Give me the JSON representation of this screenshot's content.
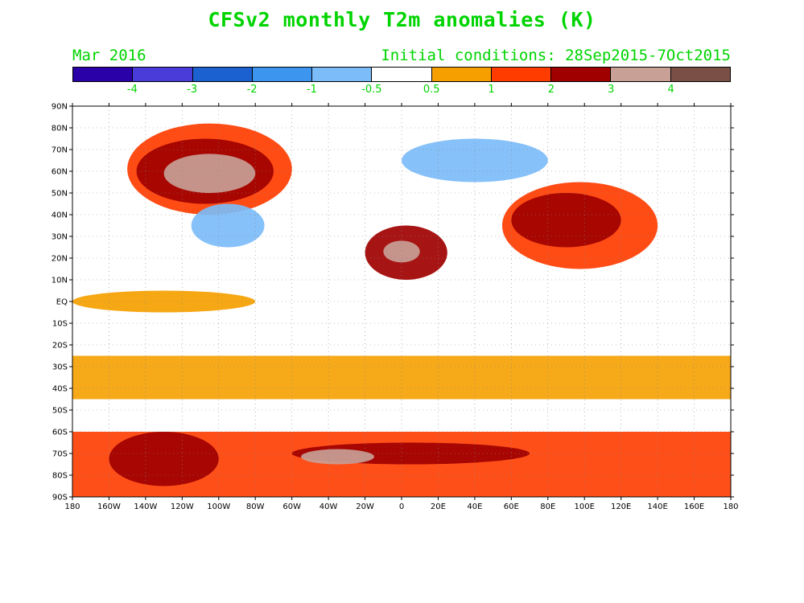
{
  "title": "CFSv2 monthly T2m anomalies (K)",
  "valid_month": "Mar 2016",
  "initial_conditions": "Initial conditions: 28Sep2015-7Oct2015",
  "colorbar": {
    "colors": [
      "#2a00a8",
      "#4a3cd8",
      "#1b62d0",
      "#3c96f0",
      "#7cbcf8",
      "#ffffff",
      "#f5a000",
      "#ff3c00",
      "#a00000",
      "#c8a096",
      "#7a5046"
    ],
    "labels": [
      "-4",
      "-3",
      "-2",
      "-1",
      "-0.5",
      "0.5",
      "1",
      "2",
      "3",
      "4"
    ]
  },
  "map": {
    "lat_labels": [
      "90N",
      "80N",
      "70N",
      "60N",
      "50N",
      "40N",
      "30N",
      "20N",
      "10N",
      "EQ",
      "10S",
      "20S",
      "30S",
      "40S",
      "50S",
      "60S",
      "70S",
      "80S",
      "90S"
    ],
    "lon_labels": [
      "180",
      "160W",
      "140W",
      "120W",
      "100W",
      "80W",
      "60W",
      "40W",
      "20W",
      "0",
      "20E",
      "40E",
      "60E",
      "80E",
      "100E",
      "120E",
      "140E",
      "160E",
      "180"
    ],
    "field": [
      {
        "level": "1-2",
        "color": "#ff3c00",
        "lon": [
          -150,
          -60
        ],
        "lat": [
          40,
          82
        ]
      },
      {
        "level": "3-4",
        "color": "#a00000",
        "lon": [
          -145,
          -70
        ],
        "lat": [
          45,
          75
        ]
      },
      {
        "level": ">4",
        "color": "#c8a096",
        "lon": [
          -130,
          -80
        ],
        "lat": [
          50,
          68
        ]
      },
      {
        "level": "1-2",
        "color": "#ff3c00",
        "lon": [
          55,
          140
        ],
        "lat": [
          15,
          55
        ]
      },
      {
        "level": "3-4",
        "color": "#a00000",
        "lon": [
          60,
          120
        ],
        "lat": [
          25,
          50
        ]
      },
      {
        "level": "3-4",
        "color": "#a00000",
        "lon": [
          -20,
          25
        ],
        "lat": [
          10,
          35
        ]
      },
      {
        "level": ">4",
        "color": "#c8a096",
        "lon": [
          -10,
          10
        ],
        "lat": [
          18,
          28
        ]
      },
      {
        "level": "-1--0.5",
        "color": "#7cbcf8",
        "lon": [
          -115,
          -75
        ],
        "lat": [
          25,
          45
        ]
      },
      {
        "level": "-1--0.5",
        "color": "#7cbcf8",
        "lon": [
          0,
          80
        ],
        "lat": [
          55,
          75
        ]
      },
      {
        "level": "1-2",
        "color": "#ff3c00",
        "lon": [
          -180,
          180
        ],
        "lat": [
          -90,
          -60
        ]
      },
      {
        "level": "3-4",
        "color": "#a00000",
        "lon": [
          -160,
          -100
        ],
        "lat": [
          -85,
          -60
        ]
      },
      {
        "level": "3-4",
        "color": "#a00000",
        "lon": [
          -60,
          70
        ],
        "lat": [
          -75,
          -65
        ]
      },
      {
        "level": ">4",
        "color": "#c8a096",
        "lon": [
          -55,
          -15
        ],
        "lat": [
          -75,
          -68
        ]
      },
      {
        "level": "0.5-1",
        "color": "#f5a000",
        "lon": [
          -180,
          180
        ],
        "lat": [
          -45,
          -25
        ]
      },
      {
        "level": "0.5-1",
        "color": "#f5a000",
        "lon": [
          -180,
          -80
        ],
        "lat": [
          -5,
          5
        ]
      }
    ]
  }
}
